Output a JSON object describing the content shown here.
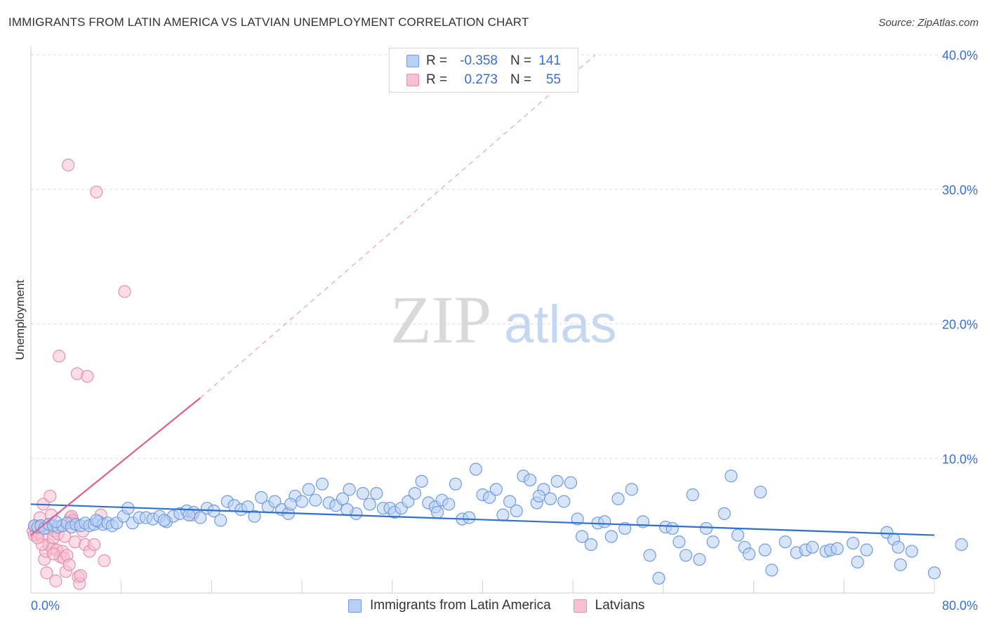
{
  "title": "IMMIGRANTS FROM LATIN AMERICA VS LATVIAN UNEMPLOYMENT CORRELATION CHART",
  "source": "Source: ZipAtlas.com",
  "watermark": {
    "zip": "ZIP",
    "atlas": "atlas"
  },
  "legend": {
    "rows": [
      {
        "r_label": "R =",
        "r_value": "-0.358",
        "n_label": "N =",
        "n_value": "141"
      },
      {
        "r_label": "R =",
        "r_value": "0.273",
        "n_label": "N =",
        "n_value": "55"
      }
    ]
  },
  "colors": {
    "blue_fill": "#b8d0f2",
    "blue_stroke": "#6f9be0",
    "blue_line": "#2f6fd0",
    "pink_fill": "#f7c1d2",
    "pink_stroke": "#e690ad",
    "pink_line": "#e0608c",
    "axis_text": "#3a6fcf",
    "grid": "#dcdcdc"
  },
  "chart_data": {
    "type": "scatter",
    "title": "IMMIGRANTS FROM LATIN AMERICA VS LATVIAN UNEMPLOYMENT CORRELATION CHART",
    "xlabel": "",
    "ylabel": "Unemployment",
    "xlim": [
      0,
      80
    ],
    "ylim": [
      0,
      40
    ],
    "x_tick_labels": [
      "0.0%",
      "80.0%"
    ],
    "y_ticks": [
      10,
      20,
      30,
      40
    ],
    "y_tick_labels": [
      "10.0%",
      "20.0%",
      "30.0%",
      "40.0%"
    ],
    "legend_position": "bottom-center",
    "series": [
      {
        "name": "Immigrants from Latin America",
        "color": "#6f9be0",
        "trend": {
          "x": [
            0,
            80
          ],
          "y": [
            6.6,
            4.3
          ],
          "style": "solid"
        },
        "points": [
          [
            0.3,
            5.0
          ],
          [
            0.6,
            4.9
          ],
          [
            0.9,
            5.0
          ],
          [
            1.2,
            4.8
          ],
          [
            1.6,
            5.1
          ],
          [
            2.0,
            5.0
          ],
          [
            2.4,
            4.9
          ],
          [
            2.8,
            5.0
          ],
          [
            3.2,
            5.2
          ],
          [
            3.6,
            4.9
          ],
          [
            4.0,
            5.1
          ],
          [
            4.4,
            5.0
          ],
          [
            4.8,
            5.2
          ],
          [
            5.2,
            5.0
          ],
          [
            5.6,
            5.1
          ],
          [
            6.0,
            5.3
          ],
          [
            6.4,
            5.1
          ],
          [
            6.8,
            5.2
          ],
          [
            7.2,
            5.0
          ],
          [
            7.6,
            5.2
          ],
          [
            8.2,
            5.7
          ],
          [
            8.6,
            6.3
          ],
          [
            9.0,
            5.2
          ],
          [
            9.6,
            5.6
          ],
          [
            10.2,
            5.6
          ],
          [
            10.8,
            5.5
          ],
          [
            11.4,
            5.7
          ],
          [
            12.0,
            5.3
          ],
          [
            12.6,
            5.7
          ],
          [
            13.2,
            5.9
          ],
          [
            13.8,
            6.1
          ],
          [
            14.4,
            6.0
          ],
          [
            15.0,
            5.6
          ],
          [
            15.6,
            6.3
          ],
          [
            16.2,
            6.1
          ],
          [
            16.8,
            5.4
          ],
          [
            17.4,
            6.8
          ],
          [
            18.0,
            6.5
          ],
          [
            18.6,
            6.2
          ],
          [
            19.2,
            6.4
          ],
          [
            19.8,
            5.7
          ],
          [
            20.4,
            7.1
          ],
          [
            21.0,
            6.4
          ],
          [
            21.6,
            6.8
          ],
          [
            22.2,
            6.2
          ],
          [
            22.8,
            5.9
          ],
          [
            23.4,
            7.2
          ],
          [
            24.0,
            6.8
          ],
          [
            24.6,
            7.7
          ],
          [
            25.2,
            6.9
          ],
          [
            25.8,
            8.1
          ],
          [
            26.4,
            6.7
          ],
          [
            27.0,
            6.5
          ],
          [
            27.6,
            7.0
          ],
          [
            28.2,
            7.7
          ],
          [
            28.8,
            5.9
          ],
          [
            29.4,
            7.4
          ],
          [
            30.0,
            6.6
          ],
          [
            30.6,
            7.4
          ],
          [
            31.2,
            6.3
          ],
          [
            31.8,
            6.3
          ],
          [
            32.2,
            6.0
          ],
          [
            32.8,
            6.3
          ],
          [
            33.4,
            6.8
          ],
          [
            34.0,
            7.4
          ],
          [
            34.6,
            8.3
          ],
          [
            35.2,
            6.7
          ],
          [
            35.8,
            6.4
          ],
          [
            36.4,
            6.9
          ],
          [
            37.0,
            6.6
          ],
          [
            37.6,
            8.1
          ],
          [
            38.2,
            5.5
          ],
          [
            38.8,
            5.6
          ],
          [
            39.4,
            9.2
          ],
          [
            40.0,
            7.3
          ],
          [
            40.6,
            7.1
          ],
          [
            41.2,
            7.7
          ],
          [
            41.8,
            5.8
          ],
          [
            42.4,
            6.8
          ],
          [
            43.0,
            6.1
          ],
          [
            43.6,
            8.7
          ],
          [
            44.2,
            8.4
          ],
          [
            44.8,
            6.7
          ],
          [
            45.4,
            7.7
          ],
          [
            46.0,
            7.0
          ],
          [
            46.6,
            8.3
          ],
          [
            47.2,
            6.8
          ],
          [
            47.8,
            8.2
          ],
          [
            48.4,
            5.5
          ],
          [
            48.8,
            4.2
          ],
          [
            49.6,
            3.6
          ],
          [
            50.2,
            5.2
          ],
          [
            50.8,
            5.3
          ],
          [
            51.4,
            4.2
          ],
          [
            52.0,
            7.0
          ],
          [
            52.6,
            4.8
          ],
          [
            53.2,
            7.7
          ],
          [
            54.2,
            5.3
          ],
          [
            54.8,
            2.8
          ],
          [
            55.6,
            1.1
          ],
          [
            56.2,
            4.9
          ],
          [
            56.8,
            4.8
          ],
          [
            57.4,
            3.8
          ],
          [
            58.0,
            2.8
          ],
          [
            58.6,
            7.3
          ],
          [
            59.2,
            2.5
          ],
          [
            59.8,
            4.8
          ],
          [
            60.4,
            3.8
          ],
          [
            61.4,
            5.9
          ],
          [
            62.0,
            8.7
          ],
          [
            62.6,
            4.3
          ],
          [
            63.2,
            3.4
          ],
          [
            63.6,
            2.9
          ],
          [
            64.6,
            7.5
          ],
          [
            65.0,
            3.2
          ],
          [
            65.6,
            1.7
          ],
          [
            66.8,
            3.8
          ],
          [
            67.8,
            3.0
          ],
          [
            68.6,
            3.2
          ],
          [
            69.2,
            3.4
          ],
          [
            70.4,
            3.1
          ],
          [
            70.8,
            3.2
          ],
          [
            71.4,
            3.3
          ],
          [
            72.8,
            3.7
          ],
          [
            73.2,
            2.3
          ],
          [
            74.0,
            3.2
          ],
          [
            75.8,
            4.5
          ],
          [
            76.4,
            4.0
          ],
          [
            76.8,
            3.4
          ],
          [
            77.0,
            2.1
          ],
          [
            78.0,
            3.1
          ],
          [
            80.0,
            1.5
          ],
          [
            82.4,
            3.6
          ],
          [
            2.2,
            5.3
          ],
          [
            5.8,
            5.4
          ],
          [
            11.8,
            5.4
          ],
          [
            14.0,
            5.8
          ],
          [
            23.0,
            6.6
          ],
          [
            28.0,
            6.2
          ],
          [
            36.0,
            6.0
          ],
          [
            45.0,
            7.2
          ]
        ]
      },
      {
        "name": "Latvians",
        "color": "#e690ad",
        "trend": {
          "x": [
            0,
            15
          ],
          "y": [
            4.3,
            14.5
          ],
          "style": "solid",
          "extended": {
            "x": [
              15,
              50
            ],
            "y": [
              14.5,
              40.0
            ],
            "style": "dashed"
          }
        },
        "points": [
          [
            0.2,
            4.6
          ],
          [
            0.3,
            4.3
          ],
          [
            0.4,
            5.0
          ],
          [
            0.5,
            4.4
          ],
          [
            0.6,
            4.8
          ],
          [
            0.7,
            4.5
          ],
          [
            0.8,
            5.6
          ],
          [
            0.9,
            4.9
          ],
          [
            1.0,
            4.2
          ],
          [
            1.1,
            6.6
          ],
          [
            1.2,
            2.5
          ],
          [
            1.3,
            3.1
          ],
          [
            1.4,
            1.5
          ],
          [
            1.5,
            4.8
          ],
          [
            1.6,
            3.6
          ],
          [
            1.7,
            7.2
          ],
          [
            1.8,
            5.8
          ],
          [
            1.9,
            3.3
          ],
          [
            2.0,
            4.1
          ],
          [
            2.1,
            4.6
          ],
          [
            2.2,
            0.9
          ],
          [
            2.3,
            3.2
          ],
          [
            2.4,
            4.4
          ],
          [
            2.5,
            17.6
          ],
          [
            2.6,
            2.7
          ],
          [
            2.7,
            5.0
          ],
          [
            2.8,
            3.1
          ],
          [
            2.9,
            2.6
          ],
          [
            3.0,
            4.2
          ],
          [
            3.1,
            1.6
          ],
          [
            3.2,
            2.8
          ],
          [
            3.3,
            31.8
          ],
          [
            3.4,
            2.1
          ],
          [
            3.5,
            5.6
          ],
          [
            3.6,
            5.7
          ],
          [
            3.7,
            5.4
          ],
          [
            3.9,
            3.8
          ],
          [
            4.1,
            16.3
          ],
          [
            4.2,
            1.2
          ],
          [
            4.3,
            0.7
          ],
          [
            4.4,
            1.3
          ],
          [
            4.6,
            4.6
          ],
          [
            4.8,
            3.6
          ],
          [
            5.0,
            16.1
          ],
          [
            5.2,
            3.1
          ],
          [
            5.6,
            3.6
          ],
          [
            5.8,
            29.8
          ],
          [
            6.2,
            5.8
          ],
          [
            6.5,
            2.4
          ],
          [
            8.3,
            22.4
          ],
          [
            14.3,
            5.8
          ],
          [
            1.0,
            3.6
          ],
          [
            2.0,
            2.9
          ],
          [
            0.6,
            4.1
          ],
          [
            3.6,
            5.2
          ]
        ]
      }
    ]
  },
  "bottom_legend": {
    "items": [
      "Immigrants from Latin America",
      "Latvians"
    ]
  }
}
